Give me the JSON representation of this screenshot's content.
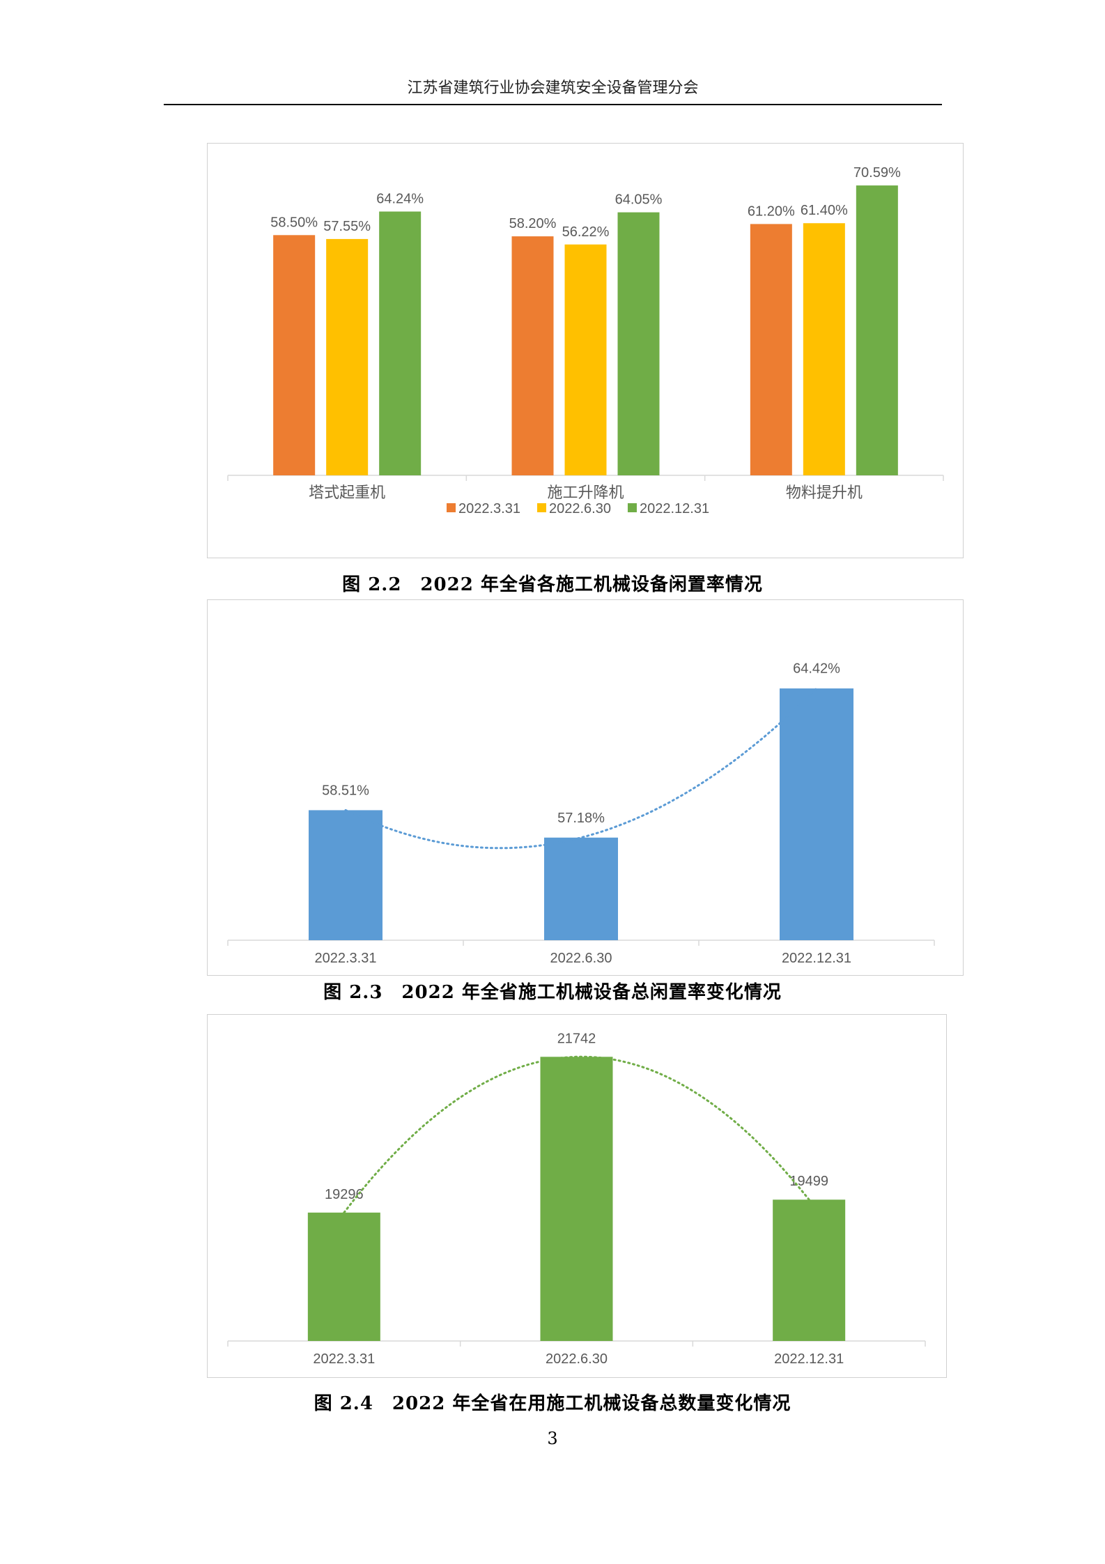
{
  "header": {
    "title": "江苏省建筑行业协会建筑安全设备管理分会"
  },
  "charts": [
    {
      "caption": "图 2.2　2022 年全省各施工机械设备闲置率情况",
      "chart_data": {
        "type": "bar",
        "categories": [
          "塔式起重机",
          "施工升降机",
          "物料提升机"
        ],
        "series": [
          {
            "name": "2022.3.31",
            "color": "#ED7D31",
            "values": [
              58.5,
              58.2,
              61.2
            ],
            "labels": [
              "58.50%",
              "58.20%",
              "61.20%"
            ]
          },
          {
            "name": "2022.6.30",
            "color": "#FFC000",
            "values": [
              57.55,
              56.22,
              61.4
            ],
            "labels": [
              "57.55%",
              "56.22%",
              "61.40%"
            ]
          },
          {
            "name": "2022.12.31",
            "color": "#70AD47",
            "values": [
              64.24,
              64.05,
              70.59
            ],
            "labels": [
              "64.24%",
              "64.05%",
              "70.59%"
            ]
          }
        ],
        "ylim": [
          0,
          74
        ],
        "legend": "bottom",
        "grid": false
      }
    },
    {
      "caption": "图 2.3　2022 年全省施工机械设备总闲置率变化情况",
      "chart_data": {
        "type": "bar",
        "categories": [
          "2022.3.31",
          "2022.6.30",
          "2022.12.31"
        ],
        "series": [
          {
            "color": "#5B9BD5",
            "values": [
              58.51,
              57.18,
              64.42
            ],
            "labels": [
              "58.51%",
              "57.18%",
              "64.42%"
            ]
          }
        ],
        "trendline": {
          "style": "dotted",
          "color": "#5B9BD5"
        },
        "ylim": [
          52.2,
          66.0
        ],
        "grid": false
      }
    },
    {
      "caption": "图 2.4　2022 年全省在用施工机械设备总数量变化情况",
      "chart_data": {
        "type": "bar",
        "categories": [
          "2022.3.31",
          "2022.6.30",
          "2022.12.31"
        ],
        "series": [
          {
            "color": "#70AD47",
            "values": [
              19296,
              21742,
              19499
            ],
            "labels": [
              "19296",
              "21742",
              "19499"
            ]
          }
        ],
        "trendline": {
          "style": "dotted",
          "color": "#70AD47"
        },
        "ylim": [
          17280,
          21800
        ],
        "grid": false
      }
    }
  ],
  "footer": {
    "page_number": "3"
  }
}
